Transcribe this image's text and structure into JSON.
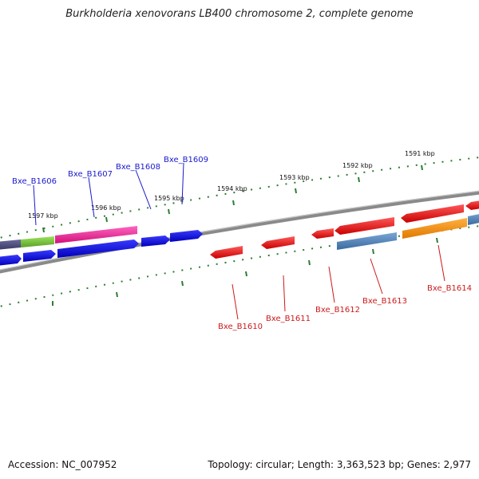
{
  "title": "Burkholderia xenovorans LB400 chromosome 2, complete genome",
  "accession": "Accession: NC_007952",
  "summary": "Topology: circular; Length: 3,363,523 bp; Genes: 2,977",
  "scale_labels": [
    "1597 kbp",
    "1596 kbp",
    "1595 kbp",
    "1594 kbp",
    "1593 kbp",
    "1592 kbp",
    "1591 kbp"
  ],
  "colors": {
    "backbone": "#8a8a8a",
    "tick": "#2e7d32",
    "forward_label": "#1a1acc",
    "reverse_label": "#cc1a1a"
  },
  "forward_genes": [
    {
      "label": "Bxe_B1606",
      "color": "#ff2aa0"
    },
    {
      "label": "Bxe_B1607",
      "color": "#1010e0"
    },
    {
      "label": "Bxe_B1608",
      "color": "#1010e0"
    },
    {
      "label": "Bxe_B1609",
      "color": "#1010e0"
    }
  ],
  "reverse_genes": [
    {
      "label": "Bxe_B1610",
      "color": "#ee1111"
    },
    {
      "label": "Bxe_B1611",
      "color": "#ee1111"
    },
    {
      "label": "Bxe_B1612",
      "color": "#ee1111"
    },
    {
      "label": "Bxe_B1613",
      "color": "#4a7fb5"
    },
    {
      "label": "Bxe_B1614",
      "color": "#ff8c00"
    }
  ]
}
